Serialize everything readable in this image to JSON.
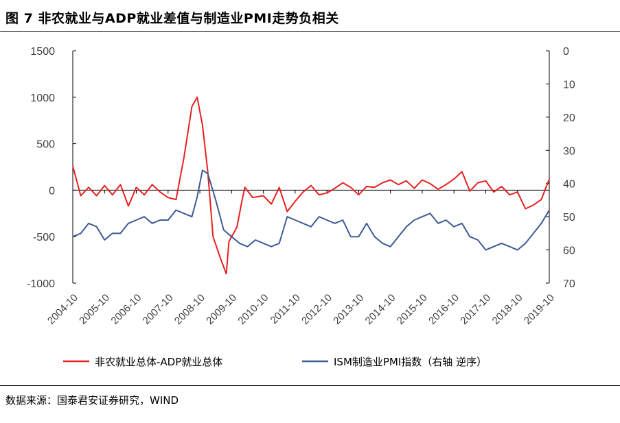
{
  "figure": {
    "title": "图 7 非农就业与ADP就业差值与制造业PMI走势负相关",
    "source": "数据来源：国泰君安证券研究，WIND"
  },
  "colors": {
    "series1": "#e8201f",
    "series2": "#3c5a95",
    "axis": "#000000",
    "text": "#404040"
  },
  "chart_data": {
    "type": "line",
    "title": "",
    "xlabel": "",
    "ylabel": "",
    "left_axis": {
      "ylim": [
        -1000,
        1500
      ],
      "ticks": [
        -1000,
        -500,
        0,
        500,
        1000,
        1500
      ]
    },
    "right_axis": {
      "ylim": [
        0,
        70
      ],
      "inverted": true,
      "ticks": [
        0,
        10,
        20,
        30,
        40,
        50,
        60,
        70
      ]
    },
    "x_range": [
      "2004-10",
      "2019-10"
    ],
    "x_ticks": [
      "2004-10",
      "2005-10",
      "2006-10",
      "2007-10",
      "2008-10",
      "2009-10",
      "2010-10",
      "2011-10",
      "2012-10",
      "2013-10",
      "2014-10",
      "2015-10",
      "2016-10",
      "2017-10",
      "2018-10",
      "2019-10"
    ],
    "legend_position": "bottom",
    "series": [
      {
        "name": "非农就业总体-ADP就业总体",
        "axis": "left",
        "points": [
          [
            "2004-10",
            260
          ],
          [
            "2005-01",
            -60
          ],
          [
            "2005-04",
            30
          ],
          [
            "2005-07",
            -60
          ],
          [
            "2005-10",
            50
          ],
          [
            "2006-01",
            -50
          ],
          [
            "2006-04",
            60
          ],
          [
            "2006-07",
            -170
          ],
          [
            "2006-10",
            30
          ],
          [
            "2007-01",
            -50
          ],
          [
            "2007-04",
            60
          ],
          [
            "2007-07",
            -20
          ],
          [
            "2007-10",
            -80
          ],
          [
            "2008-01",
            -100
          ],
          [
            "2008-04",
            350
          ],
          [
            "2008-07",
            900
          ],
          [
            "2008-09",
            1000
          ],
          [
            "2008-11",
            700
          ],
          [
            "2009-01",
            200
          ],
          [
            "2009-03",
            -500
          ],
          [
            "2009-06",
            -750
          ],
          [
            "2009-08",
            -900
          ],
          [
            "2009-09",
            -550
          ],
          [
            "2009-12",
            -400
          ],
          [
            "2010-02",
            -100
          ],
          [
            "2010-03",
            30
          ],
          [
            "2010-06",
            -80
          ],
          [
            "2010-10",
            -60
          ],
          [
            "2011-01",
            -150
          ],
          [
            "2011-04",
            30
          ],
          [
            "2011-07",
            -230
          ],
          [
            "2011-10",
            -120
          ],
          [
            "2012-01",
            -20
          ],
          [
            "2012-04",
            50
          ],
          [
            "2012-07",
            -50
          ],
          [
            "2012-10",
            -30
          ],
          [
            "2013-01",
            20
          ],
          [
            "2013-04",
            80
          ],
          [
            "2013-07",
            30
          ],
          [
            "2013-10",
            -50
          ],
          [
            "2014-01",
            40
          ],
          [
            "2014-04",
            30
          ],
          [
            "2014-07",
            80
          ],
          [
            "2014-10",
            110
          ],
          [
            "2015-01",
            60
          ],
          [
            "2015-04",
            100
          ],
          [
            "2015-07",
            20
          ],
          [
            "2015-10",
            110
          ],
          [
            "2016-01",
            70
          ],
          [
            "2016-04",
            10
          ],
          [
            "2016-07",
            60
          ],
          [
            "2016-10",
            120
          ],
          [
            "2017-01",
            200
          ],
          [
            "2017-04",
            -10
          ],
          [
            "2017-07",
            80
          ],
          [
            "2017-10",
            100
          ],
          [
            "2018-01",
            -20
          ],
          [
            "2018-04",
            40
          ],
          [
            "2018-07",
            -50
          ],
          [
            "2018-10",
            -20
          ],
          [
            "2019-01",
            -200
          ],
          [
            "2019-04",
            -160
          ],
          [
            "2019-07",
            -100
          ],
          [
            "2019-10",
            120
          ]
        ]
      },
      {
        "name": "ISM制造业PMI指数（右轴 逆序）",
        "axis": "right",
        "points": [
          [
            "2004-10",
            56
          ],
          [
            "2005-01",
            55
          ],
          [
            "2005-04",
            52
          ],
          [
            "2005-07",
            53
          ],
          [
            "2005-10",
            57
          ],
          [
            "2006-01",
            55
          ],
          [
            "2006-04",
            55
          ],
          [
            "2006-07",
            52
          ],
          [
            "2006-10",
            51
          ],
          [
            "2007-01",
            50
          ],
          [
            "2007-04",
            52
          ],
          [
            "2007-07",
            51
          ],
          [
            "2007-10",
            51
          ],
          [
            "2008-01",
            48
          ],
          [
            "2008-04",
            49
          ],
          [
            "2008-07",
            50
          ],
          [
            "2008-09",
            44
          ],
          [
            "2008-11",
            36
          ],
          [
            "2009-01",
            37
          ],
          [
            "2009-04",
            45
          ],
          [
            "2009-07",
            54
          ],
          [
            "2009-10",
            56
          ],
          [
            "2010-01",
            58
          ],
          [
            "2010-04",
            59
          ],
          [
            "2010-07",
            57
          ],
          [
            "2010-10",
            58
          ],
          [
            "2011-01",
            59
          ],
          [
            "2011-04",
            58
          ],
          [
            "2011-07",
            50
          ],
          [
            "2011-10",
            51
          ],
          [
            "2012-01",
            52
          ],
          [
            "2012-04",
            53
          ],
          [
            "2012-07",
            50
          ],
          [
            "2012-10",
            51
          ],
          [
            "2013-01",
            52
          ],
          [
            "2013-04",
            51
          ],
          [
            "2013-07",
            56
          ],
          [
            "2013-10",
            56
          ],
          [
            "2014-01",
            52
          ],
          [
            "2014-04",
            56
          ],
          [
            "2014-07",
            58
          ],
          [
            "2014-10",
            59
          ],
          [
            "2015-01",
            56
          ],
          [
            "2015-04",
            53
          ],
          [
            "2015-07",
            51
          ],
          [
            "2015-10",
            50
          ],
          [
            "2016-01",
            49
          ],
          [
            "2016-04",
            52
          ],
          [
            "2016-07",
            51
          ],
          [
            "2016-10",
            53
          ],
          [
            "2017-01",
            52
          ],
          [
            "2017-04",
            56
          ],
          [
            "2017-07",
            57
          ],
          [
            "2017-10",
            60
          ],
          [
            "2018-01",
            59
          ],
          [
            "2018-04",
            58
          ],
          [
            "2018-07",
            59
          ],
          [
            "2018-10",
            60
          ],
          [
            "2019-01",
            58
          ],
          [
            "2019-04",
            55
          ],
          [
            "2019-07",
            52
          ],
          [
            "2019-10",
            48
          ]
        ]
      }
    ]
  }
}
